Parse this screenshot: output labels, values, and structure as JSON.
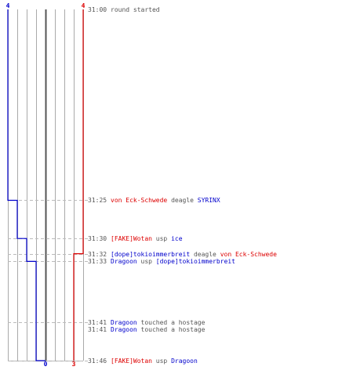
{
  "colors": {
    "team_a": "#0000cc",
    "team_b": "#dd0000",
    "text": "#555555",
    "grid": "#aaaaaa",
    "center": "#555555",
    "guide": "#bbbbbb"
  },
  "chart_data": {
    "type": "line",
    "title": "",
    "xlabel": "",
    "ylabel": "",
    "ylim": [
      "31:00",
      "31:46"
    ],
    "grid_lines": 9,
    "series": [
      {
        "team": "blue",
        "start_label": "4",
        "end_label": "0",
        "steps": [
          {
            "time": "31:00",
            "count": 4
          },
          {
            "time": "31:25",
            "count": 3
          },
          {
            "time": "31:30",
            "count": 2
          },
          {
            "time": "31:33",
            "count": 1
          },
          {
            "time": "31:46",
            "count": 0
          }
        ]
      },
      {
        "team": "red",
        "start_label": "4",
        "end_label": "3",
        "steps": [
          {
            "time": "31:00",
            "count": 4
          },
          {
            "time": "31:32",
            "count": 3
          }
        ]
      }
    ],
    "events": [
      {
        "time": "31:00",
        "parts": [
          {
            "text": "round started",
            "color": "text"
          }
        ]
      },
      {
        "time": "31:25",
        "parts": [
          {
            "text": "von Eck-Schwede",
            "color": "team_b"
          },
          {
            "text": "deagle",
            "color": "text"
          },
          {
            "text": "SYRINX",
            "color": "team_a"
          }
        ]
      },
      {
        "time": "31:30",
        "parts": [
          {
            "text": "[FAKE]Wotan",
            "color": "team_b"
          },
          {
            "text": "usp",
            "color": "text"
          },
          {
            "text": "ice",
            "color": "team_a"
          }
        ]
      },
      {
        "time": "31:32",
        "parts": [
          {
            "text": "[dope]tokioimmerbreit",
            "color": "team_a"
          },
          {
            "text": "deagle",
            "color": "text"
          },
          {
            "text": "von Eck-Schwede",
            "color": "team_b"
          }
        ]
      },
      {
        "time": "31:33",
        "parts": [
          {
            "text": "Dragoon",
            "color": "team_a"
          },
          {
            "text": "usp",
            "color": "text"
          },
          {
            "text": "[dope]tokioimmerbreit",
            "color": "team_a"
          }
        ]
      },
      {
        "time": "31:41",
        "parts": [
          {
            "text": "Dragoon",
            "color": "team_a"
          },
          {
            "text": "touched a hostage",
            "color": "text"
          }
        ]
      },
      {
        "time": "31:41",
        "parts": [
          {
            "text": "Dragoon",
            "color": "team_a"
          },
          {
            "text": "touched a hostage",
            "color": "text"
          }
        ]
      },
      {
        "time": "31:46",
        "parts": [
          {
            "text": "[FAKE]Wotan",
            "color": "team_b"
          },
          {
            "text": "usp",
            "color": "text"
          },
          {
            "text": "Dragoon",
            "color": "team_a"
          }
        ]
      }
    ]
  }
}
